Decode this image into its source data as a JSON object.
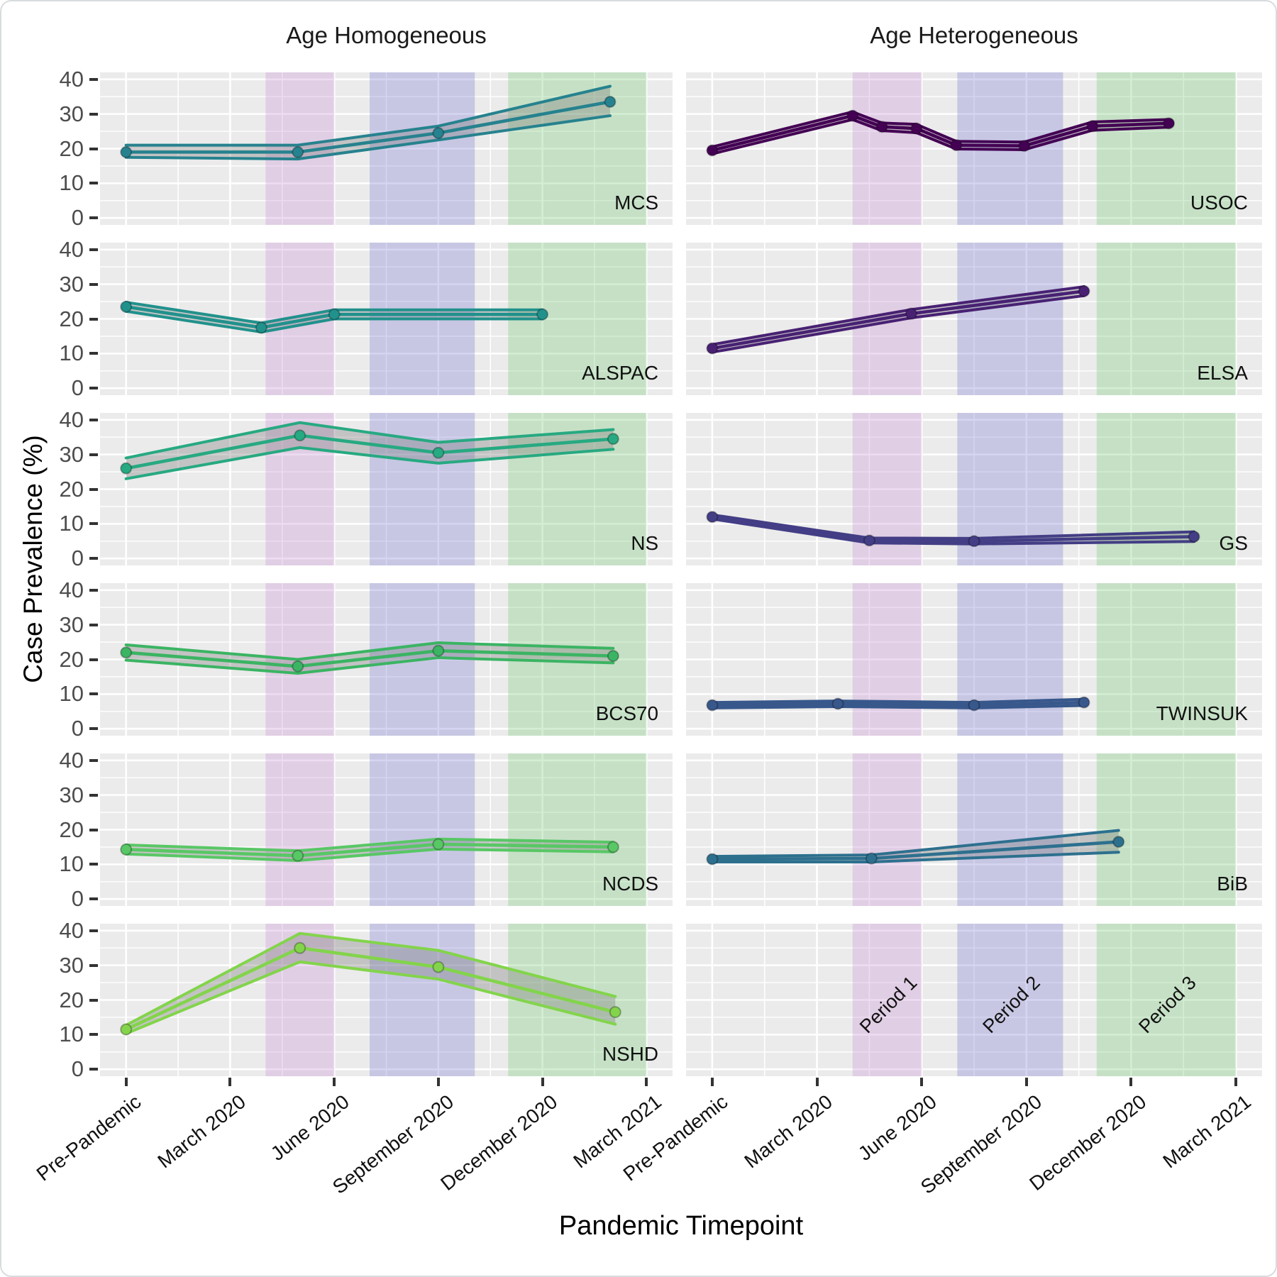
{
  "figure": {
    "col_titles": [
      "Age Homogeneous",
      "Age Heterogeneous"
    ],
    "xlabel": "Pandemic Timepoint",
    "ylabel": "Case Prevalence (%)"
  },
  "chart_data": {
    "type": "line",
    "title": "",
    "xlabel": "Pandemic Timepoint",
    "ylabel": "Case Prevalence (%)",
    "x_tick_labels": [
      "Pre-Pandemic",
      "March 2020",
      "June 2020",
      "September 2020",
      "December 2020",
      "March 2021"
    ],
    "x_tick_positions": [
      0,
      1,
      2,
      3,
      4,
      5
    ],
    "x_range_padded": [
      -0.25,
      5.25
    ],
    "y_ticks": [
      0,
      10,
      20,
      30,
      40
    ],
    "y_range_padded": [
      -2,
      42
    ],
    "grid": "on",
    "legend_position": "none",
    "panel_background": "#EBEBEB",
    "gridline_color": "#FFFFFF",
    "ribbon_fill": "rgba(120,120,120,0.35)",
    "axis_text_color": "#4d4d4d",
    "periods": [
      {
        "label": "Period 1",
        "t0": 1.34,
        "t1": 2.0,
        "color": "rgba(202,145,214,0.32)"
      },
      {
        "label": "Period 2",
        "t0": 2.34,
        "t1": 3.35,
        "color": "rgba(128,126,214,0.33)"
      },
      {
        "label": "Period 3",
        "t0": 3.67,
        "t1": 5.0,
        "color": "rgba(122,203,122,0.32)"
      }
    ],
    "facets": [
      {
        "row": 1,
        "col": 1,
        "study": "MCS",
        "color": "#26828E",
        "t": [
          0,
          1.65,
          3.0,
          4.65
        ],
        "y": [
          19,
          19,
          24.5,
          33.5
        ],
        "lo": [
          17.5,
          17,
          22.5,
          29.5
        ],
        "hi": [
          21,
          21,
          26.5,
          38
        ]
      },
      {
        "row": 1,
        "col": 2,
        "study": "USOC",
        "color": "#440154",
        "t": [
          0,
          1.34,
          1.62,
          1.95,
          2.33,
          2.98,
          3.63,
          4.36
        ],
        "y": [
          19.5,
          29.5,
          26.3,
          25.8,
          21,
          20.8,
          26.5,
          27.3
        ],
        "lo": [
          18.5,
          28.4,
          25.2,
          24.6,
          19.9,
          19.7,
          25.3,
          26.2
        ],
        "hi": [
          20.5,
          30.6,
          27.4,
          27.0,
          22.1,
          21.9,
          27.7,
          28.4
        ]
      },
      {
        "row": 2,
        "col": 1,
        "study": "ALSPAC",
        "color": "#21918C",
        "t": [
          0,
          1.3,
          2.0,
          4.0
        ],
        "y": [
          23.5,
          17.5,
          21.3,
          21.3
        ],
        "lo": [
          22.2,
          16.2,
          20.0,
          20.0
        ],
        "hi": [
          24.8,
          18.8,
          22.6,
          22.6
        ]
      },
      {
        "row": 2,
        "col": 2,
        "study": "ELSA",
        "color": "#482173",
        "t": [
          0,
          1.9,
          3.55
        ],
        "y": [
          11.5,
          21.5,
          28
        ],
        "lo": [
          10.4,
          20.3,
          26.7
        ],
        "hi": [
          12.6,
          22.7,
          29.3
        ]
      },
      {
        "row": 3,
        "col": 1,
        "study": "NS",
        "color": "#27A981",
        "t": [
          0,
          1.67,
          3.0,
          4.68
        ],
        "y": [
          26,
          35.5,
          30.5,
          34.5
        ],
        "lo": [
          23,
          32,
          27.5,
          31.5
        ],
        "hi": [
          29,
          39.2,
          33.5,
          37.2
        ]
      },
      {
        "row": 3,
        "col": 2,
        "study": "GS",
        "color": "#433E85",
        "t": [
          0,
          1.5,
          2.5,
          4.6
        ],
        "y": [
          12,
          5.2,
          5.0,
          6.3
        ],
        "lo": [
          11.4,
          4.5,
          4.2,
          4.9
        ],
        "hi": [
          12.6,
          5.9,
          5.8,
          7.7
        ]
      },
      {
        "row": 4,
        "col": 1,
        "study": "BCS70",
        "color": "#3BB463",
        "t": [
          0,
          1.65,
          3.0,
          4.68
        ],
        "y": [
          22,
          18,
          22.5,
          21
        ],
        "lo": [
          19.8,
          16,
          20.5,
          19
        ],
        "hi": [
          24.2,
          20,
          24.8,
          23.2
        ]
      },
      {
        "row": 4,
        "col": 2,
        "study": "TWINSUK",
        "color": "#38588C",
        "t": [
          0,
          1.2,
          2.5,
          3.55
        ],
        "y": [
          6.8,
          7.2,
          6.8,
          7.6
        ],
        "lo": [
          6.0,
          6.4,
          6.0,
          6.7
        ],
        "hi": [
          7.6,
          8.0,
          7.6,
          8.5
        ]
      },
      {
        "row": 5,
        "col": 1,
        "study": "NCDS",
        "color": "#58C765",
        "t": [
          0,
          1.65,
          3.0,
          4.68
        ],
        "y": [
          14.3,
          12.5,
          15.8,
          15
        ],
        "lo": [
          13.0,
          11.1,
          14.4,
          13.6
        ],
        "hi": [
          15.6,
          13.9,
          17.3,
          16.4
        ]
      },
      {
        "row": 5,
        "col": 2,
        "study": "BiB",
        "color": "#2D708E",
        "t": [
          0,
          1.52,
          3.88
        ],
        "y": [
          11.5,
          11.7,
          16.5
        ],
        "lo": [
          10.7,
          10.7,
          13.5
        ],
        "hi": [
          12.3,
          12.7,
          19.8
        ]
      },
      {
        "row": 6,
        "col": 1,
        "study": "NSHD",
        "color": "#83D44B",
        "t": [
          0,
          1.67,
          3.0,
          4.7
        ],
        "y": [
          11.5,
          35,
          29.5,
          16.5
        ],
        "lo": [
          10.3,
          31,
          26,
          13
        ],
        "hi": [
          12.7,
          39.2,
          34.3,
          21
        ]
      },
      {
        "row": 6,
        "col": 2,
        "study": "",
        "empty": true,
        "show_period_labels": true
      }
    ]
  }
}
